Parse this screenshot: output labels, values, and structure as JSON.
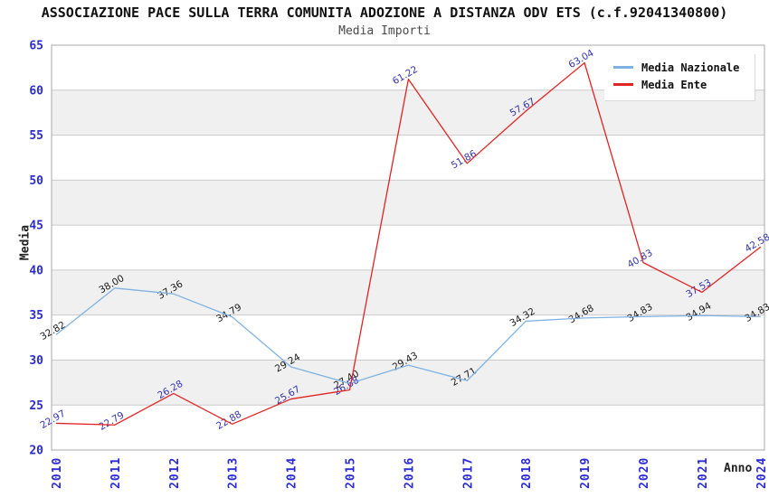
{
  "title": "ASSOCIAZIONE PACE SULLA TERRA COMUNITA ADOZIONE A DISTANZA ODV ETS (c.f.92041340800)",
  "subtitle": "Media Importi",
  "chart_data": {
    "type": "line",
    "title": "ASSOCIAZIONE PACE SULLA TERRA COMUNITA ADOZIONE A DISTANZA ODV ETS (c.f.92041340800)",
    "subtitle": "Media Importi",
    "categories": [
      "2010",
      "2011",
      "2012",
      "2013",
      "2014",
      "2015",
      "2016",
      "2017",
      "2018",
      "2019",
      "2020",
      "2021",
      "2024"
    ],
    "series": [
      {
        "name": "Media Nazionale",
        "color": "#7FB2E4",
        "label_color": "#1A1A1A",
        "values": [
          32.82,
          38.0,
          37.36,
          34.79,
          29.24,
          27.4,
          29.43,
          27.71,
          34.32,
          34.68,
          34.83,
          34.94,
          34.83
        ]
      },
      {
        "name": "Media Ente",
        "color": "#E02424",
        "label_color": "#3434AF",
        "values": [
          22.97,
          22.79,
          26.28,
          22.88,
          25.67,
          26.68,
          61.22,
          51.86,
          57.67,
          63.04,
          40.83,
          37.53,
          42.58
        ]
      }
    ],
    "xlabel": "Anno",
    "ylabel": "Media",
    "ylim": [
      20,
      65
    ],
    "ytick_step": 5,
    "grid": "horizontal gridlines every 5 units with alternating shaded bands",
    "legend_position": "top-right",
    "data_label_rotation_deg": -30,
    "styles": {
      "tick_color": "#2B2BD5",
      "band_color": "#F0F0F0",
      "grid_color": "#CCCCCC",
      "frame_color": "#A8A8A8",
      "background": "#FFFFFF"
    }
  }
}
